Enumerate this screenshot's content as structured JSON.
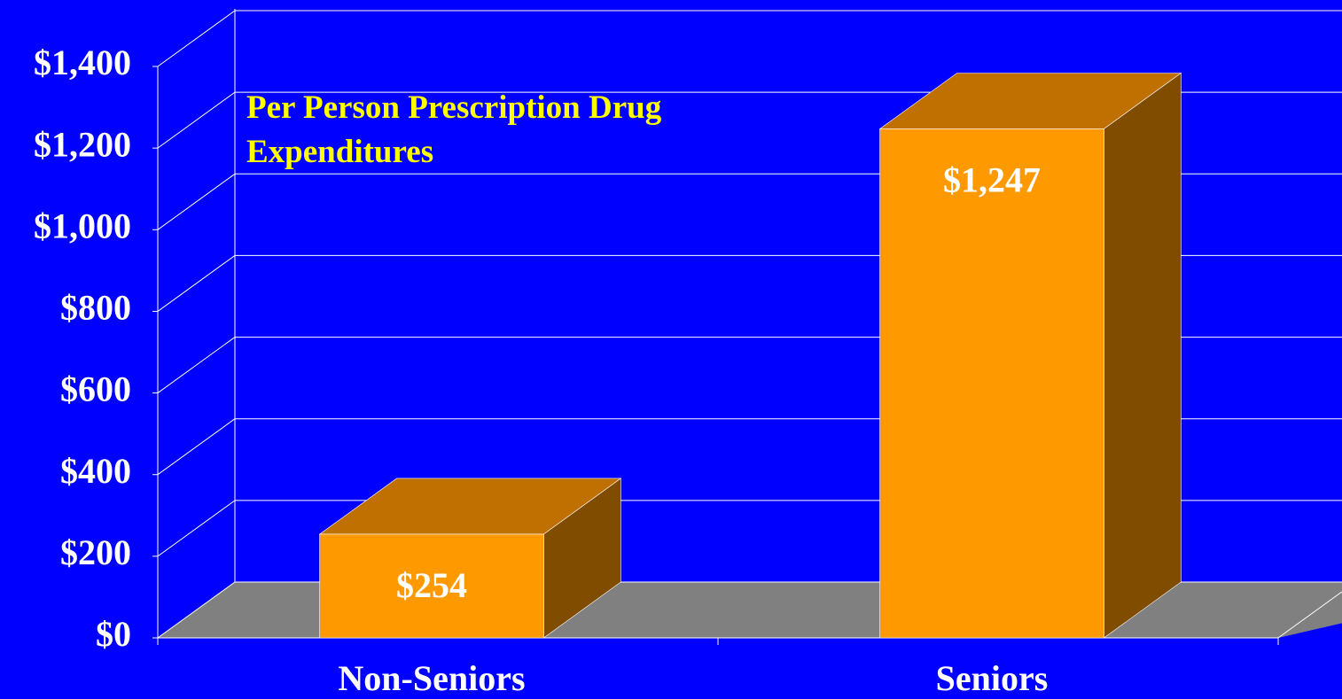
{
  "chart_data": {
    "type": "bar3d",
    "title": "Per Person Prescription Drug Expenditures",
    "categories": [
      "Non-Seniors",
      "Seniors"
    ],
    "values": [
      254,
      1247
    ],
    "value_labels": [
      "$254",
      "$1,247"
    ],
    "color": "#ff9900",
    "ylim": [
      0,
      1400
    ],
    "yticks": [
      {
        "value": 0,
        "label": "$0"
      },
      {
        "value": 200,
        "label": "$200"
      },
      {
        "value": 400,
        "label": "$400"
      },
      {
        "value": 600,
        "label": "$600"
      },
      {
        "value": 800,
        "label": "$800"
      },
      {
        "value": 1000,
        "label": "$1,000"
      },
      {
        "value": 1200,
        "label": "$1,200"
      },
      {
        "value": 1400,
        "label": "$1,400"
      }
    ],
    "grid": true
  }
}
